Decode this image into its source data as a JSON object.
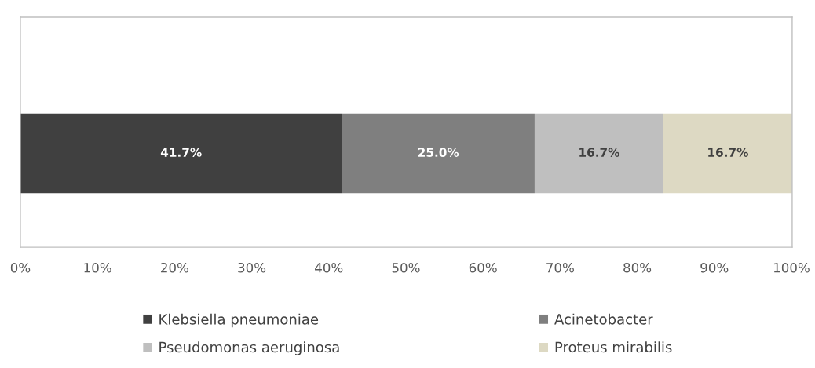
{
  "chart_data": {
    "type": "bar",
    "orientation": "horizontal",
    "stacked": true,
    "categories": [
      null
    ],
    "series": [
      {
        "name": "Klebsiella pneumoniae",
        "color": "#404040",
        "values": [
          41.7
        ],
        "value_labels": [
          "41.7%"
        ]
      },
      {
        "name": "Acinetobacter",
        "color": "#7f7f7f",
        "values": [
          25.0
        ],
        "value_labels": [
          "25.0%"
        ]
      },
      {
        "name": "Pseudomonas aeruginosa",
        "color": "#bfbfbf",
        "values": [
          16.7
        ],
        "value_labels": [
          "16.7%"
        ]
      },
      {
        "name": "Proteus mirabilis",
        "color": "#ddd9c3",
        "values": [
          16.7
        ],
        "value_labels": [
          "16.7%"
        ]
      }
    ],
    "xlim": [
      0,
      100.1
    ],
    "xticks": [
      {
        "value": 0,
        "label": "0%"
      },
      {
        "value": 10,
        "label": "10%"
      },
      {
        "value": 20,
        "label": "20%"
      },
      {
        "value": 30,
        "label": "30%"
      },
      {
        "value": 40,
        "label": "40%"
      },
      {
        "value": 50,
        "label": "50%"
      },
      {
        "value": 60,
        "label": "60%"
      },
      {
        "value": 70,
        "label": "70%"
      },
      {
        "value": 80,
        "label": "80%"
      },
      {
        "value": 90,
        "label": "90%"
      },
      {
        "value": 100,
        "label": "100%"
      }
    ],
    "grid": false,
    "legend": "bottom"
  }
}
